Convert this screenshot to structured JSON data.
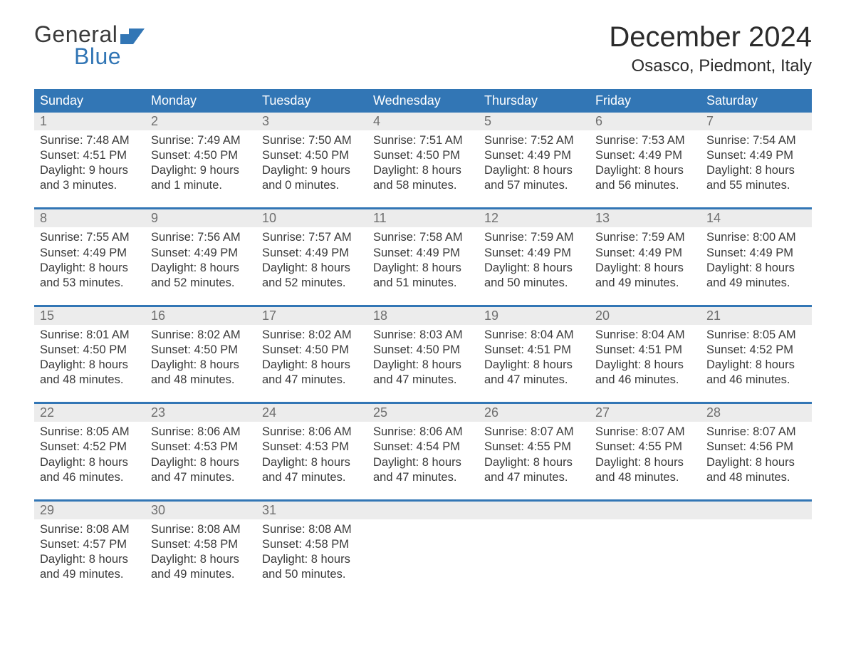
{
  "brand": {
    "word1": "General",
    "word2": "Blue",
    "flag_color": "#3276b5"
  },
  "title": "December 2024",
  "location": "Osasco, Piedmont, Italy",
  "colors": {
    "header_bg": "#3276b5",
    "header_text": "#ffffff",
    "daynum_bg": "#ececec",
    "daynum_text": "#6f6f6f",
    "body_text": "#3a3a3a",
    "separator": "#3276b5",
    "page_bg": "#ffffff"
  },
  "fonts": {
    "title_size": 40,
    "location_size": 24,
    "header_size": 18,
    "cell_size": 16.5
  },
  "day_names": [
    "Sunday",
    "Monday",
    "Tuesday",
    "Wednesday",
    "Thursday",
    "Friday",
    "Saturday"
  ],
  "weeks": [
    {
      "nums": [
        "1",
        "2",
        "3",
        "4",
        "5",
        "6",
        "7"
      ],
      "cells": [
        {
          "sunrise": "Sunrise: 7:48 AM",
          "sunset": "Sunset: 4:51 PM",
          "d1": "Daylight: 9 hours",
          "d2": "and 3 minutes."
        },
        {
          "sunrise": "Sunrise: 7:49 AM",
          "sunset": "Sunset: 4:50 PM",
          "d1": "Daylight: 9 hours",
          "d2": "and 1 minute."
        },
        {
          "sunrise": "Sunrise: 7:50 AM",
          "sunset": "Sunset: 4:50 PM",
          "d1": "Daylight: 9 hours",
          "d2": "and 0 minutes."
        },
        {
          "sunrise": "Sunrise: 7:51 AM",
          "sunset": "Sunset: 4:50 PM",
          "d1": "Daylight: 8 hours",
          "d2": "and 58 minutes."
        },
        {
          "sunrise": "Sunrise: 7:52 AM",
          "sunset": "Sunset: 4:49 PM",
          "d1": "Daylight: 8 hours",
          "d2": "and 57 minutes."
        },
        {
          "sunrise": "Sunrise: 7:53 AM",
          "sunset": "Sunset: 4:49 PM",
          "d1": "Daylight: 8 hours",
          "d2": "and 56 minutes."
        },
        {
          "sunrise": "Sunrise: 7:54 AM",
          "sunset": "Sunset: 4:49 PM",
          "d1": "Daylight: 8 hours",
          "d2": "and 55 minutes."
        }
      ]
    },
    {
      "nums": [
        "8",
        "9",
        "10",
        "11",
        "12",
        "13",
        "14"
      ],
      "cells": [
        {
          "sunrise": "Sunrise: 7:55 AM",
          "sunset": "Sunset: 4:49 PM",
          "d1": "Daylight: 8 hours",
          "d2": "and 53 minutes."
        },
        {
          "sunrise": "Sunrise: 7:56 AM",
          "sunset": "Sunset: 4:49 PM",
          "d1": "Daylight: 8 hours",
          "d2": "and 52 minutes."
        },
        {
          "sunrise": "Sunrise: 7:57 AM",
          "sunset": "Sunset: 4:49 PM",
          "d1": "Daylight: 8 hours",
          "d2": "and 52 minutes."
        },
        {
          "sunrise": "Sunrise: 7:58 AM",
          "sunset": "Sunset: 4:49 PM",
          "d1": "Daylight: 8 hours",
          "d2": "and 51 minutes."
        },
        {
          "sunrise": "Sunrise: 7:59 AM",
          "sunset": "Sunset: 4:49 PM",
          "d1": "Daylight: 8 hours",
          "d2": "and 50 minutes."
        },
        {
          "sunrise": "Sunrise: 7:59 AM",
          "sunset": "Sunset: 4:49 PM",
          "d1": "Daylight: 8 hours",
          "d2": "and 49 minutes."
        },
        {
          "sunrise": "Sunrise: 8:00 AM",
          "sunset": "Sunset: 4:49 PM",
          "d1": "Daylight: 8 hours",
          "d2": "and 49 minutes."
        }
      ]
    },
    {
      "nums": [
        "15",
        "16",
        "17",
        "18",
        "19",
        "20",
        "21"
      ],
      "cells": [
        {
          "sunrise": "Sunrise: 8:01 AM",
          "sunset": "Sunset: 4:50 PM",
          "d1": "Daylight: 8 hours",
          "d2": "and 48 minutes."
        },
        {
          "sunrise": "Sunrise: 8:02 AM",
          "sunset": "Sunset: 4:50 PM",
          "d1": "Daylight: 8 hours",
          "d2": "and 48 minutes."
        },
        {
          "sunrise": "Sunrise: 8:02 AM",
          "sunset": "Sunset: 4:50 PM",
          "d1": "Daylight: 8 hours",
          "d2": "and 47 minutes."
        },
        {
          "sunrise": "Sunrise: 8:03 AM",
          "sunset": "Sunset: 4:50 PM",
          "d1": "Daylight: 8 hours",
          "d2": "and 47 minutes."
        },
        {
          "sunrise": "Sunrise: 8:04 AM",
          "sunset": "Sunset: 4:51 PM",
          "d1": "Daylight: 8 hours",
          "d2": "and 47 minutes."
        },
        {
          "sunrise": "Sunrise: 8:04 AM",
          "sunset": "Sunset: 4:51 PM",
          "d1": "Daylight: 8 hours",
          "d2": "and 46 minutes."
        },
        {
          "sunrise": "Sunrise: 8:05 AM",
          "sunset": "Sunset: 4:52 PM",
          "d1": "Daylight: 8 hours",
          "d2": "and 46 minutes."
        }
      ]
    },
    {
      "nums": [
        "22",
        "23",
        "24",
        "25",
        "26",
        "27",
        "28"
      ],
      "cells": [
        {
          "sunrise": "Sunrise: 8:05 AM",
          "sunset": "Sunset: 4:52 PM",
          "d1": "Daylight: 8 hours",
          "d2": "and 46 minutes."
        },
        {
          "sunrise": "Sunrise: 8:06 AM",
          "sunset": "Sunset: 4:53 PM",
          "d1": "Daylight: 8 hours",
          "d2": "and 47 minutes."
        },
        {
          "sunrise": "Sunrise: 8:06 AM",
          "sunset": "Sunset: 4:53 PM",
          "d1": "Daylight: 8 hours",
          "d2": "and 47 minutes."
        },
        {
          "sunrise": "Sunrise: 8:06 AM",
          "sunset": "Sunset: 4:54 PM",
          "d1": "Daylight: 8 hours",
          "d2": "and 47 minutes."
        },
        {
          "sunrise": "Sunrise: 8:07 AM",
          "sunset": "Sunset: 4:55 PM",
          "d1": "Daylight: 8 hours",
          "d2": "and 47 minutes."
        },
        {
          "sunrise": "Sunrise: 8:07 AM",
          "sunset": "Sunset: 4:55 PM",
          "d1": "Daylight: 8 hours",
          "d2": "and 48 minutes."
        },
        {
          "sunrise": "Sunrise: 8:07 AM",
          "sunset": "Sunset: 4:56 PM",
          "d1": "Daylight: 8 hours",
          "d2": "and 48 minutes."
        }
      ]
    },
    {
      "nums": [
        "29",
        "30",
        "31",
        "",
        "",
        "",
        ""
      ],
      "cells": [
        {
          "sunrise": "Sunrise: 8:08 AM",
          "sunset": "Sunset: 4:57 PM",
          "d1": "Daylight: 8 hours",
          "d2": "and 49 minutes."
        },
        {
          "sunrise": "Sunrise: 8:08 AM",
          "sunset": "Sunset: 4:58 PM",
          "d1": "Daylight: 8 hours",
          "d2": "and 49 minutes."
        },
        {
          "sunrise": "Sunrise: 8:08 AM",
          "sunset": "Sunset: 4:58 PM",
          "d1": "Daylight: 8 hours",
          "d2": "and 50 minutes."
        },
        null,
        null,
        null,
        null
      ]
    }
  ]
}
